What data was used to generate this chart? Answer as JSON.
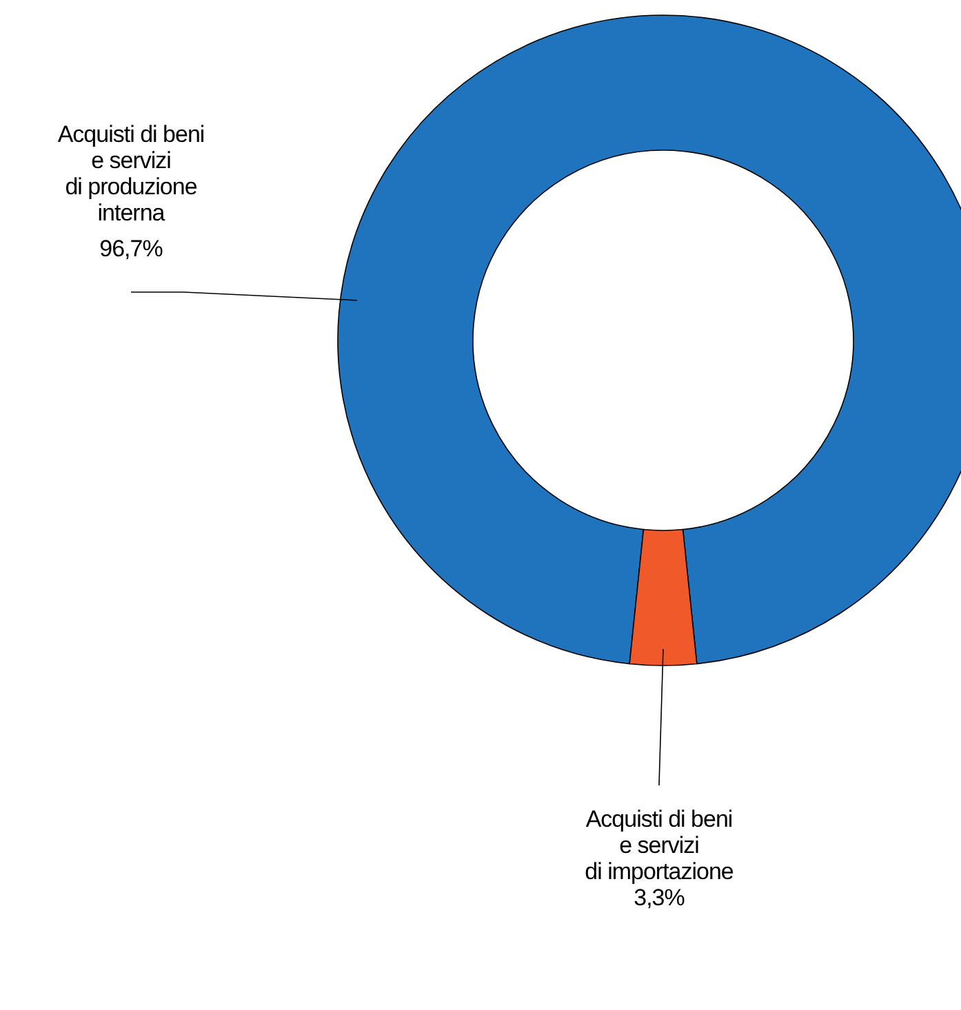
{
  "chart_data": {
    "type": "donut",
    "categories": [
      "Acquisti di beni\ne servizi\ndi produzione\ninterna",
      "Acquisti di beni\ne servizi\ndi importazione"
    ],
    "values": [
      96.7,
      3.3
    ],
    "colors": [
      "#1f74bd",
      "#f05a2a"
    ],
    "value_labels": [
      "96,7%",
      "3,3%"
    ]
  }
}
